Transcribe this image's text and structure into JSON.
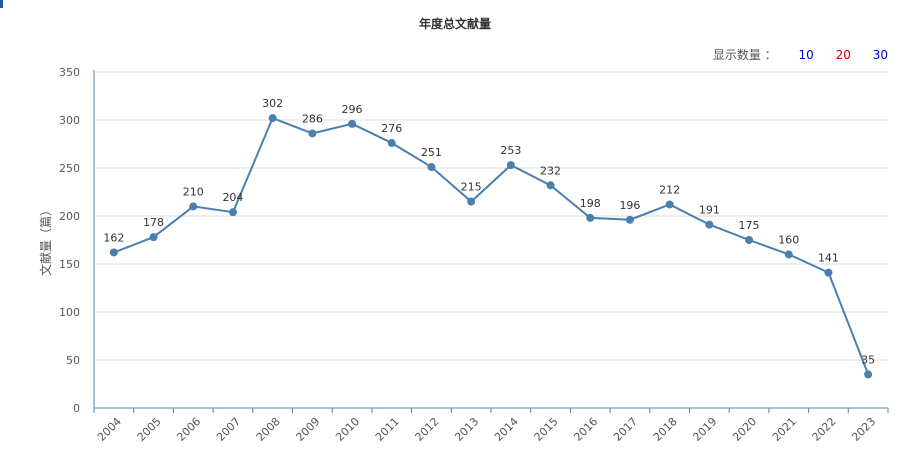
{
  "chart_data": {
    "type": "line",
    "title": "年度总文献量",
    "ylabel": "文献量（篇）",
    "xlabel": "",
    "ylim": [
      0,
      350
    ],
    "yticks": [
      0,
      50,
      100,
      150,
      200,
      250,
      300,
      350
    ],
    "grid": true,
    "categories": [
      "2004",
      "2005",
      "2006",
      "2007",
      "2008",
      "2009",
      "2010",
      "2011",
      "2012",
      "2013",
      "2014",
      "2015",
      "2016",
      "2017",
      "2018",
      "2019",
      "2020",
      "2021",
      "2022",
      "2023"
    ],
    "series": [
      {
        "values": [
          162,
          178,
          210,
          204,
          302,
          286,
          296,
          276,
          251,
          215,
          253,
          232,
          198,
          196,
          212,
          191,
          175,
          160,
          141,
          35
        ]
      }
    ],
    "line_color": "#4a7fb0"
  },
  "selector": {
    "label": "显示数量 ：",
    "options": [
      {
        "text": "10",
        "color": "#0000cc"
      },
      {
        "text": "20",
        "color": "#cc0000"
      },
      {
        "text": "30",
        "color": "#0000cc"
      }
    ]
  }
}
